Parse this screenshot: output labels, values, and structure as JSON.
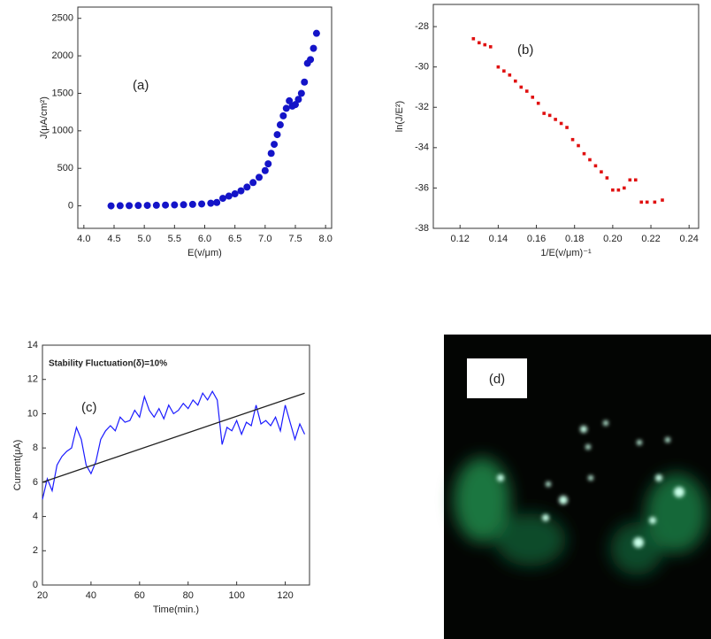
{
  "chart_data": [
    {
      "type": "scatter",
      "marker": "circle",
      "x_label": "E(v/μm)",
      "y_label": "J(μA/cm²)",
      "annotations": [
        "(a)"
      ],
      "xlim": [
        3.9,
        8.1
      ],
      "xticks": [
        {
          "value": 4,
          "label": "4.0"
        },
        {
          "value": 4.5,
          "label": "4.5"
        },
        {
          "value": 5,
          "label": "5.0"
        },
        {
          "value": 5.5,
          "label": "5.5"
        },
        {
          "value": 6,
          "label": "6.0"
        },
        {
          "value": 6.5,
          "label": "6.5"
        },
        {
          "value": 7,
          "label": "7.0"
        },
        {
          "value": 7.5,
          "label": "7.5"
        },
        {
          "value": 8,
          "label": "8.0"
        }
      ],
      "ylim": [
        -300,
        2650
      ],
      "yticks": [
        0,
        500,
        1000,
        1500,
        2000,
        2500
      ],
      "series": [
        {
          "color": "#1414c8",
          "x": [
            4.45,
            4.6,
            4.75,
            4.9,
            5.05,
            5.2,
            5.35,
            5.5,
            5.65,
            5.8,
            5.95,
            6.1,
            6.2,
            6.3,
            6.4,
            6.5,
            6.6,
            6.7,
            6.8,
            6.9,
            7.0,
            7.05,
            7.1,
            7.15,
            7.2,
            7.25,
            7.3,
            7.35,
            7.4,
            7.45,
            7.5,
            7.55,
            7.6,
            7.65,
            7.7,
            7.75,
            7.8,
            7.85
          ],
          "values": [
            0,
            2,
            3,
            5,
            6,
            8,
            10,
            12,
            15,
            20,
            25,
            35,
            45,
            100,
            130,
            160,
            200,
            250,
            310,
            380,
            470,
            560,
            700,
            820,
            950,
            1080,
            1200,
            1300,
            1400,
            1330,
            1350,
            1420,
            1500,
            1650,
            1900,
            1950,
            2100,
            2300
          ]
        }
      ]
    },
    {
      "type": "scatter",
      "marker": "square",
      "x_label": "1/E(v/μm)⁻¹",
      "y_label": "ln(J/E²)",
      "annotations": [
        "(b)"
      ],
      "xlim": [
        0.106,
        0.245
      ],
      "xticks": [
        0.12,
        0.14,
        0.16,
        0.18,
        {
          "value": 0.2,
          "label": "0.20"
        },
        0.22,
        0.24
      ],
      "ylim": [
        -38,
        -26.9
      ],
      "yticks": [
        -38,
        -36,
        -34,
        -32,
        -30,
        -28
      ],
      "series": [
        {
          "color": "#e01010",
          "x": [
            0.127,
            0.13,
            0.133,
            0.136,
            0.14,
            0.143,
            0.146,
            0.149,
            0.152,
            0.155,
            0.158,
            0.161,
            0.164,
            0.167,
            0.17,
            0.173,
            0.176,
            0.179,
            0.182,
            0.185,
            0.188,
            0.191,
            0.194,
            0.197,
            0.2,
            0.203,
            0.206,
            0.209,
            0.212,
            0.215,
            0.218,
            0.222,
            0.226
          ],
          "values": [
            -28.6,
            -28.8,
            -28.9,
            -29.0,
            -30.0,
            -30.2,
            -30.4,
            -30.7,
            -31.0,
            -31.2,
            -31.5,
            -31.8,
            -32.3,
            -32.4,
            -32.6,
            -32.8,
            -33.0,
            -33.6,
            -33.9,
            -34.3,
            -34.6,
            -34.9,
            -35.2,
            -35.5,
            -36.1,
            -36.1,
            -36.0,
            -35.6,
            -35.6,
            -36.7,
            -36.7,
            -36.7,
            -36.6
          ]
        }
      ]
    },
    {
      "type": "line",
      "x_label": "Time(min.)",
      "y_label": "Current(μA)",
      "annotations": [
        "Stability Fluctuation(δ)=10%",
        "(c)"
      ],
      "xlim": [
        20,
        130
      ],
      "xticks": [
        20,
        40,
        60,
        80,
        100,
        120
      ],
      "ylim": [
        0,
        14
      ],
      "yticks": [
        0,
        2,
        4,
        6,
        8,
        10,
        12,
        14
      ],
      "series": [
        {
          "color": "#1a1aff",
          "x": [
            20,
            22,
            24,
            26,
            28,
            30,
            32,
            34,
            36,
            38,
            40,
            42,
            44,
            46,
            48,
            50,
            52,
            54,
            56,
            58,
            60,
            62,
            64,
            66,
            68,
            70,
            72,
            74,
            76,
            78,
            80,
            82,
            84,
            86,
            88,
            90,
            92,
            94,
            96,
            98,
            100,
            102,
            104,
            106,
            108,
            110,
            112,
            114,
            116,
            118,
            120,
            122,
            124,
            126,
            128
          ],
          "values": [
            5.0,
            6.2,
            5.5,
            7.0,
            7.5,
            7.8,
            8.0,
            9.2,
            8.5,
            7.0,
            6.5,
            7.2,
            8.5,
            9.0,
            9.3,
            9.0,
            9.8,
            9.5,
            9.6,
            10.2,
            9.8,
            11.0,
            10.2,
            9.8,
            10.3,
            9.7,
            10.5,
            10.0,
            10.2,
            10.6,
            10.3,
            10.8,
            10.5,
            11.2,
            10.8,
            11.3,
            10.8,
            8.2,
            9.2,
            9.0,
            9.6,
            8.8,
            9.5,
            9.3,
            10.5,
            9.4,
            9.6,
            9.3,
            9.8,
            9.0,
            10.5,
            9.5,
            8.5,
            9.4,
            8.8
          ]
        },
        {
          "color": "#222222",
          "x": [
            20,
            128
          ],
          "values": [
            6.0,
            11.2
          ]
        }
      ]
    }
  ],
  "image_panel": {
    "label": "(d)"
  }
}
